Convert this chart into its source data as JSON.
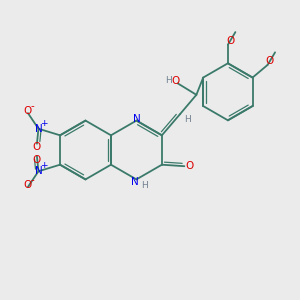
{
  "background_color": "#EBEBEB",
  "bond_color": "#3B7A6A",
  "N_color": "#0000EE",
  "O_color": "#DD0000",
  "H_color": "#708090",
  "figsize": [
    3.0,
    3.0
  ],
  "dpi": 100,
  "xlim": [
    0,
    10
  ],
  "ylim": [
    0,
    10
  ]
}
